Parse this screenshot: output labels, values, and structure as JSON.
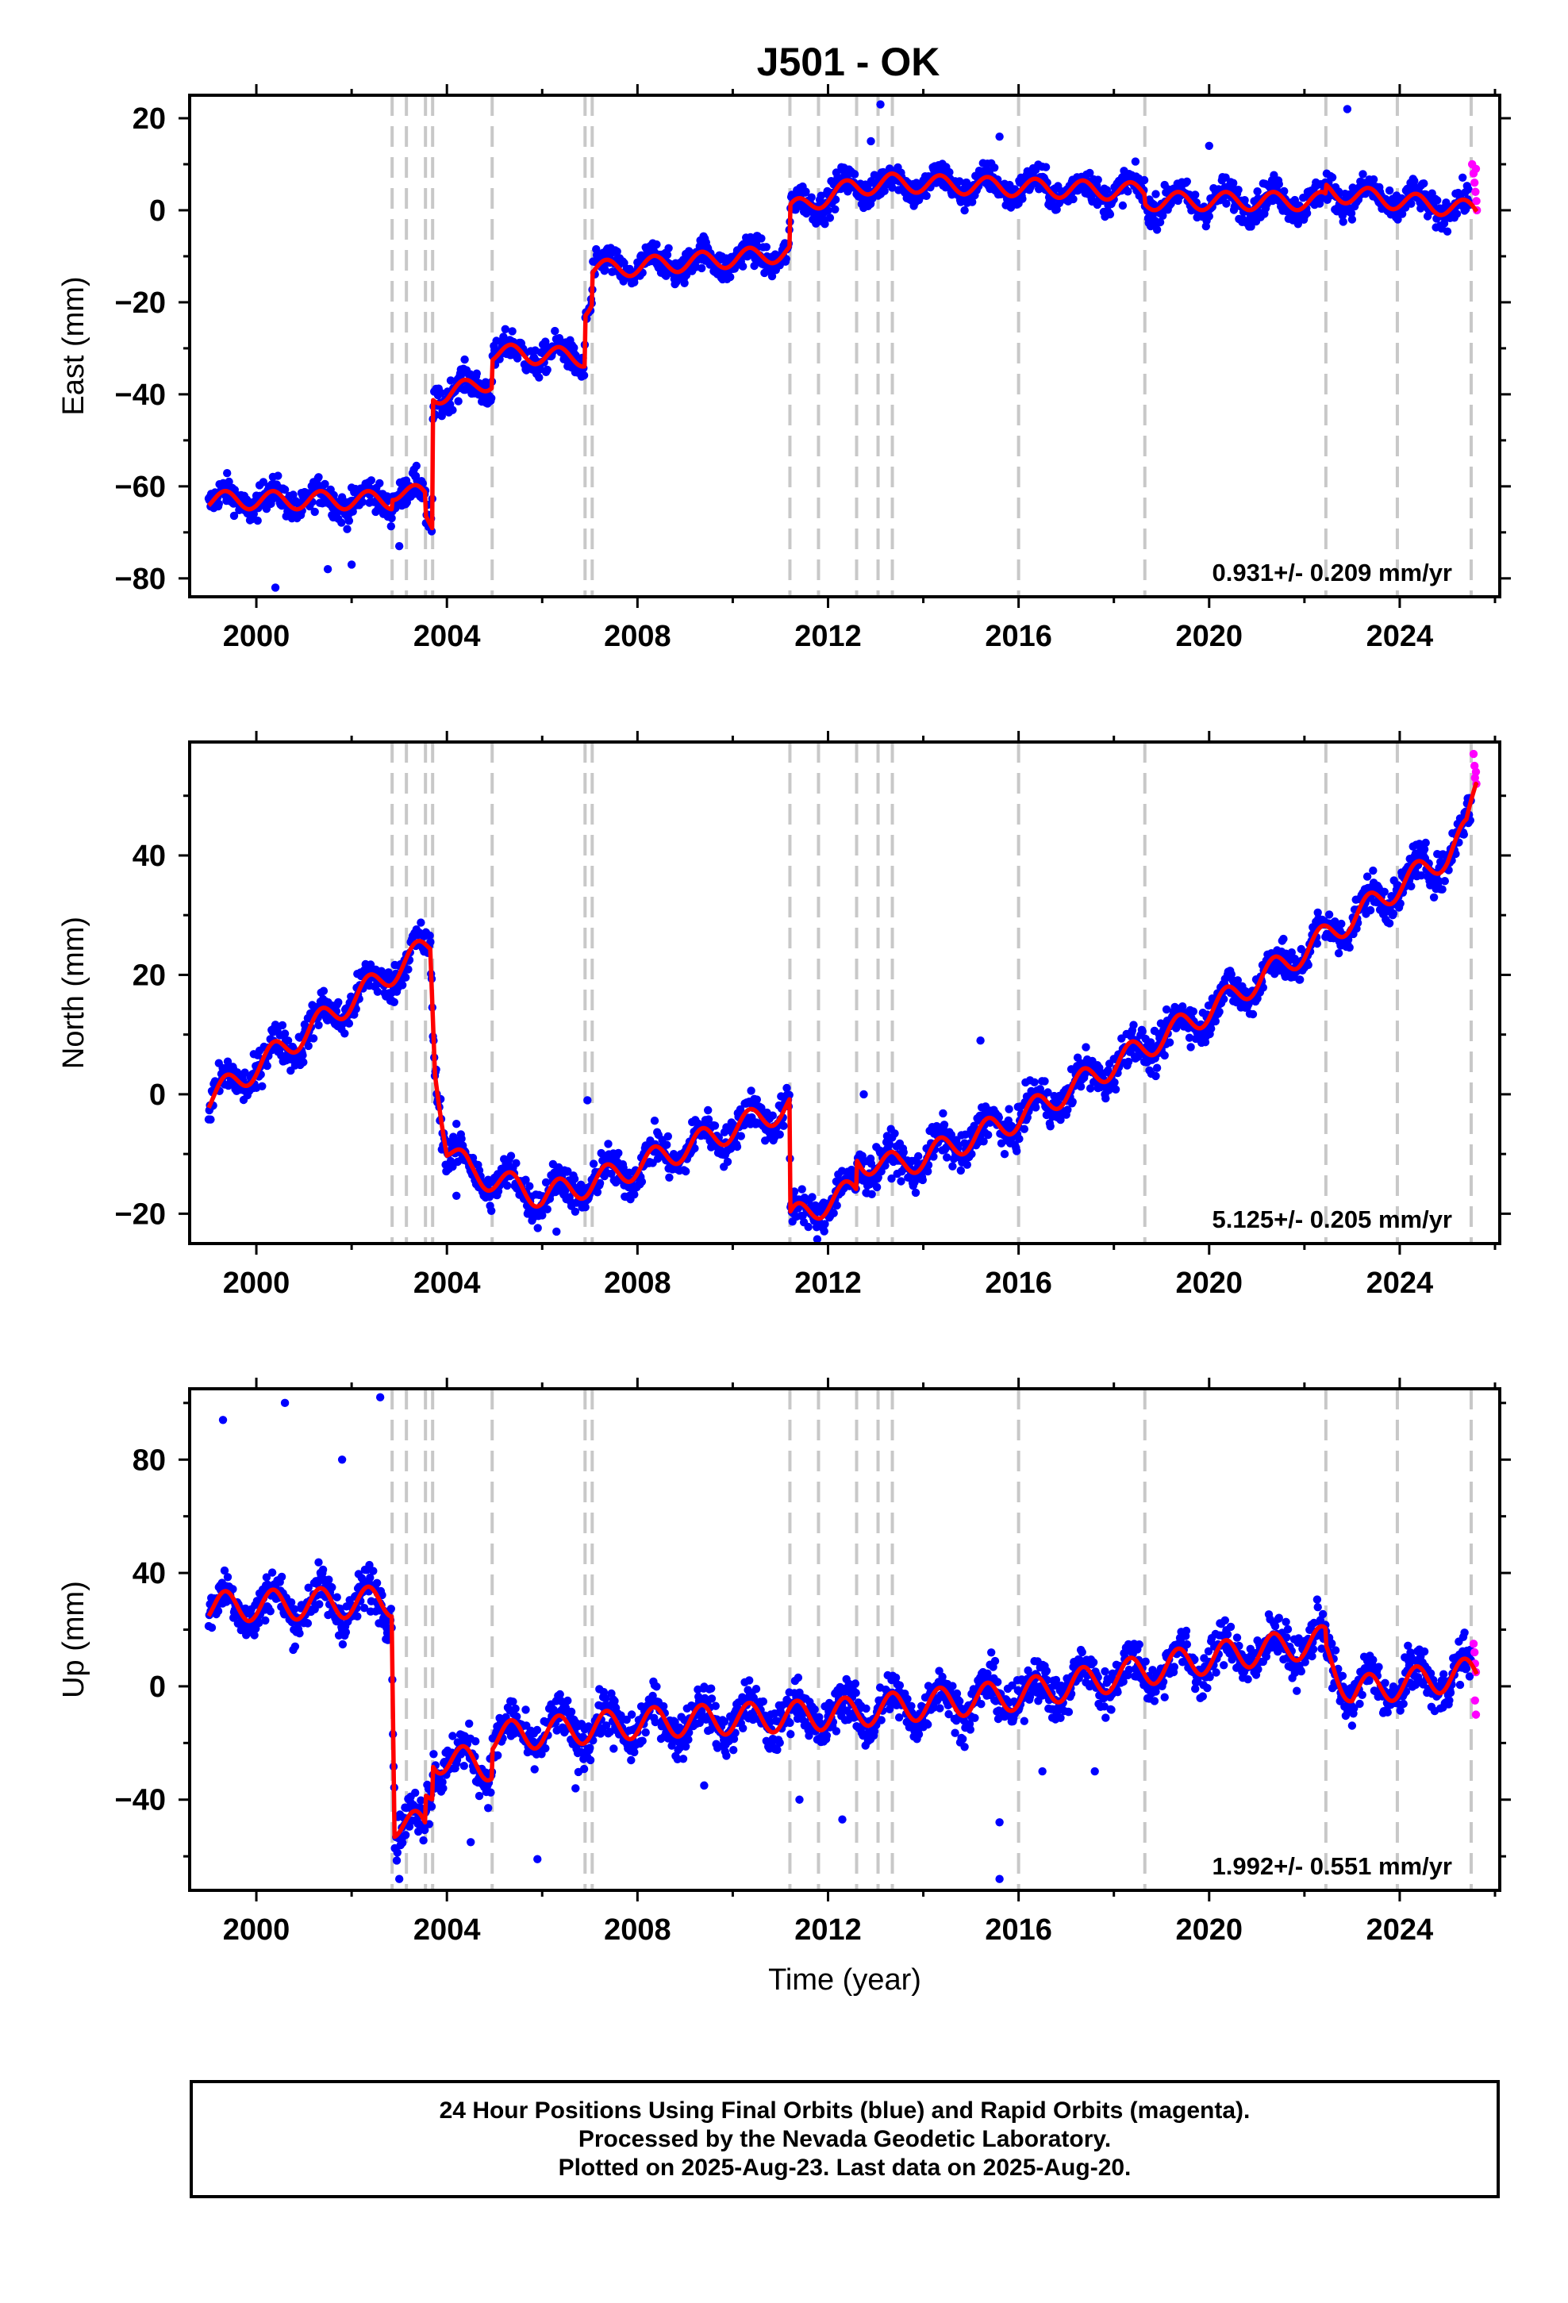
{
  "title": "J501 - OK",
  "colors": {
    "final_orbits": "#0000ff",
    "rapid_orbits": "#ff00ff",
    "model": "#ff0000",
    "event_lines": "#c8c8c8",
    "axes": "#000000"
  },
  "event_years": [
    2002.85,
    2003.15,
    2003.55,
    2003.7,
    2004.95,
    2006.9,
    2007.05,
    2011.2,
    2011.8,
    2012.6,
    2013.05,
    2013.35,
    2016.0,
    2018.65,
    2022.45,
    2023.95,
    2025.5
  ],
  "footer": {
    "line1": "24 Hour Positions Using Final Orbits (blue) and Rapid Orbits (magenta).",
    "line2": "Processed by the Nevada Geodetic Laboratory.",
    "line3": "Plotted on 2025-Aug-23. Last data on 2025-Aug-20."
  },
  "chart_data": [
    {
      "type": "scatter",
      "component": "east",
      "ylabel": "East (mm)",
      "xlabel": "",
      "xlim": [
        1998.6,
        2026.1
      ],
      "ylim": [
        -84,
        25
      ],
      "xticks": [
        2000,
        2004,
        2008,
        2012,
        2016,
        2020,
        2024
      ],
      "yticks": [
        -80,
        -60,
        -40,
        -20,
        0,
        20
      ],
      "velocity_label": "0.931+/- 0.209 mm/yr",
      "seasonal_amp": 2.2,
      "noise": 2.3,
      "model_trend": [
        [
          1999.0,
          -63
        ],
        [
          2002.84,
          -63
        ],
        [
          2002.86,
          -61
        ],
        [
          2003.54,
          -62
        ],
        [
          2003.56,
          -67
        ],
        [
          2003.69,
          -68
        ],
        [
          2003.71,
          -40
        ],
        [
          2004.0,
          -40
        ],
        [
          2004.94,
          -37
        ],
        [
          2004.96,
          -31
        ],
        [
          2006.89,
          -32
        ],
        [
          2006.91,
          -21
        ],
        [
          2007.04,
          -20
        ],
        [
          2007.06,
          -13
        ],
        [
          2010.5,
          -10
        ],
        [
          2011.19,
          -9
        ],
        [
          2011.21,
          0
        ],
        [
          2012.5,
          5
        ],
        [
          2013.3,
          6
        ],
        [
          2016.0,
          5
        ],
        [
          2018.64,
          4
        ],
        [
          2018.66,
          2
        ],
        [
          2022.44,
          2
        ],
        [
          2022.46,
          4
        ],
        [
          2025.6,
          0
        ]
      ],
      "outliers": [
        [
          2000.4,
          -82
        ],
        [
          2001.5,
          -78
        ],
        [
          2002.0,
          -77
        ],
        [
          2003.0,
          -73
        ],
        [
          2013.1,
          23
        ],
        [
          2022.9,
          22
        ],
        [
          2015.6,
          16
        ],
        [
          2020.0,
          14
        ],
        [
          2012.9,
          15
        ]
      ],
      "rapid_points": [
        [
          2025.52,
          10
        ],
        [
          2025.55,
          8
        ],
        [
          2025.57,
          6
        ],
        [
          2025.59,
          4
        ],
        [
          2025.61,
          2
        ],
        [
          2025.62,
          0
        ],
        [
          2025.6,
          9
        ]
      ]
    },
    {
      "type": "scatter",
      "component": "north",
      "ylabel": "North (mm)",
      "xlabel": "",
      "xlim": [
        1998.6,
        2026.1
      ],
      "ylim": [
        -25,
        59
      ],
      "xticks": [
        2000,
        2004,
        2008,
        2012,
        2016,
        2020,
        2024
      ],
      "yticks": [
        -20,
        0,
        20,
        40
      ],
      "velocity_label": "5.125+/- 0.205 mm/yr",
      "seasonal_amp": 2.4,
      "noise": 2.2,
      "model_trend": [
        [
          1999.0,
          -1
        ],
        [
          2003.65,
          25
        ],
        [
          2003.75,
          5
        ],
        [
          2004.0,
          -9
        ],
        [
          2004.5,
          -13
        ],
        [
          2006.0,
          -17
        ],
        [
          2007.0,
          -15
        ],
        [
          2009.0,
          -9
        ],
        [
          2011.19,
          -2
        ],
        [
          2011.21,
          -21
        ],
        [
          2012.0,
          -18
        ],
        [
          2012.59,
          -16
        ],
        [
          2012.61,
          -11
        ],
        [
          2013.5,
          -12
        ],
        [
          2014.5,
          -9
        ],
        [
          2016.0,
          -4
        ],
        [
          2018.0,
          5
        ],
        [
          2020.0,
          14
        ],
        [
          2022.0,
          24
        ],
        [
          2024.0,
          35
        ],
        [
          2025.0,
          40
        ],
        [
          2025.4,
          44
        ],
        [
          2025.6,
          52
        ]
      ],
      "outliers": [
        [
          2006.95,
          -1
        ],
        [
          2012.75,
          0
        ],
        [
          2004.2,
          -17
        ],
        [
          2006.3,
          -23
        ],
        [
          2015.2,
          9
        ]
      ],
      "rapid_points": [
        [
          2025.55,
          57
        ],
        [
          2025.57,
          55
        ],
        [
          2025.58,
          53
        ],
        [
          2025.6,
          54
        ],
        [
          2025.61,
          52
        ]
      ]
    },
    {
      "type": "scatter",
      "component": "up",
      "ylabel": "Up (mm)",
      "xlabel": "Time (year)",
      "xlim": [
        1998.6,
        2026.1
      ],
      "ylim": [
        -72,
        105
      ],
      "xticks": [
        2000,
        2004,
        2008,
        2012,
        2016,
        2020,
        2024
      ],
      "yticks": [
        -40,
        0,
        40,
        80
      ],
      "velocity_label": "1.992+/- 0.551 mm/yr",
      "seasonal_amp": 6,
      "noise": 5.5,
      "model_trend": [
        [
          1999.0,
          28
        ],
        [
          2002.84,
          30
        ],
        [
          2002.9,
          -48
        ],
        [
          2003.54,
          -50
        ],
        [
          2003.56,
          -40
        ],
        [
          2003.69,
          -37
        ],
        [
          2003.71,
          -25
        ],
        [
          2004.94,
          -28
        ],
        [
          2004.96,
          -18
        ],
        [
          2008.0,
          -13
        ],
        [
          2012.0,
          -10
        ],
        [
          2016.0,
          -3
        ],
        [
          2020.0,
          10
        ],
        [
          2022.44,
          16
        ],
        [
          2022.46,
          10
        ],
        [
          2023.0,
          -2
        ],
        [
          2025.6,
          5
        ]
      ],
      "outliers": [
        [
          2000.6,
          100
        ],
        [
          2002.6,
          102
        ],
        [
          1999.3,
          94
        ],
        [
          2001.8,
          80
        ],
        [
          2003.0,
          -68
        ],
        [
          2005.9,
          -61
        ],
        [
          2011.4,
          -40
        ],
        [
          2012.3,
          -47
        ],
        [
          2015.6,
          -68
        ],
        [
          2015.6,
          -48
        ],
        [
          2016.5,
          -30
        ],
        [
          2017.6,
          -30
        ],
        [
          2007.5,
          -22
        ],
        [
          2009.4,
          -35
        ],
        [
          2006.7,
          -36
        ],
        [
          2004.5,
          -55
        ]
      ],
      "rapid_points": [
        [
          2025.55,
          15
        ],
        [
          2025.57,
          12
        ],
        [
          2025.58,
          8
        ],
        [
          2025.6,
          5
        ],
        [
          2025.58,
          -5
        ],
        [
          2025.6,
          -10
        ]
      ]
    }
  ]
}
